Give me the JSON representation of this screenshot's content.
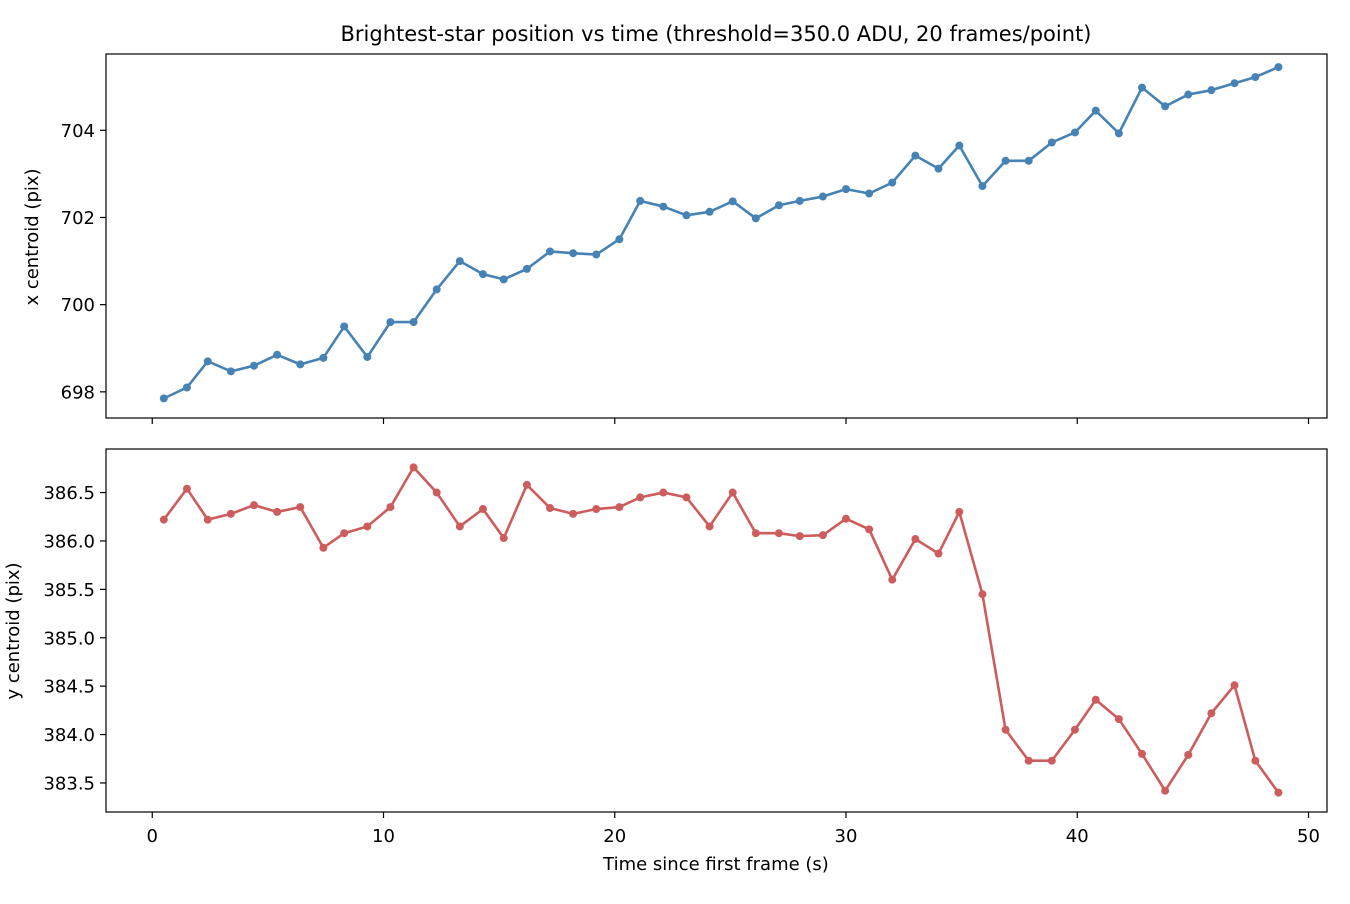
{
  "title": "Brightest-star position vs time  (threshold=350.0 ADU, 20 frames/point)",
  "xlabel": "Time since first frame (s)",
  "colors": {
    "x_series": "#4682b4",
    "y_series": "#cd5c5c"
  },
  "chart_data": [
    {
      "type": "line",
      "panel": "top",
      "ylabel": "x centroid (pix)",
      "xlim": [
        -2.0,
        50.8
      ],
      "ylim": [
        697.4,
        705.75
      ],
      "xticks": [
        0,
        10,
        20,
        30,
        40,
        50
      ],
      "yticks": [
        698,
        700,
        702,
        704
      ],
      "yticklabels": [
        "698",
        "700",
        "702",
        "704"
      ],
      "xticklabels_shown": false,
      "color": "#4682b4",
      "x": [
        0.5,
        1.5,
        2.4,
        3.4,
        4.4,
        5.4,
        6.4,
        7.4,
        8.3,
        9.3,
        10.3,
        11.3,
        12.3,
        13.3,
        14.3,
        15.2,
        16.2,
        17.2,
        18.2,
        19.2,
        20.2,
        21.1,
        22.1,
        23.1,
        24.1,
        25.1,
        26.1,
        27.1,
        28.0,
        29.0,
        30.0,
        31.0,
        32.0,
        33.0,
        34.0,
        34.9,
        35.9,
        36.9,
        37.9,
        38.9,
        39.9,
        40.8,
        41.8,
        42.8,
        43.8,
        44.8,
        45.8,
        46.8,
        47.7,
        48.7
      ],
      "y": [
        697.85,
        698.1,
        698.7,
        698.47,
        698.6,
        698.85,
        698.63,
        698.78,
        699.5,
        698.8,
        699.6,
        699.6,
        700.35,
        701.0,
        700.7,
        700.58,
        700.82,
        701.22,
        701.18,
        701.15,
        701.5,
        702.38,
        702.25,
        702.05,
        702.13,
        702.37,
        701.98,
        702.28,
        702.38,
        702.48,
        702.65,
        702.55,
        702.8,
        703.42,
        703.12,
        703.65,
        702.72,
        703.3,
        703.3,
        703.72,
        703.95,
        704.45,
        703.93,
        704.98,
        704.55,
        704.82,
        704.92,
        705.08,
        705.22,
        705.45
      ]
    },
    {
      "type": "line",
      "panel": "bottom",
      "ylabel": "y centroid (pix)",
      "xlim": [
        -2.0,
        50.8
      ],
      "ylim": [
        383.2,
        386.95
      ],
      "xticks": [
        0,
        10,
        20,
        30,
        40,
        50
      ],
      "xticklabels": [
        "0",
        "10",
        "20",
        "30",
        "40",
        "50"
      ],
      "yticks": [
        383.5,
        384.0,
        384.5,
        385.0,
        385.5,
        386.0,
        386.5
      ],
      "yticklabels": [
        "383.5",
        "384.0",
        "384.5",
        "385.0",
        "385.5",
        "386.0",
        "386.5"
      ],
      "color": "#cd5c5c",
      "x": [
        0.5,
        1.5,
        2.4,
        3.4,
        4.4,
        5.4,
        6.4,
        7.4,
        8.3,
        9.3,
        10.3,
        11.3,
        12.3,
        13.3,
        14.3,
        15.2,
        16.2,
        17.2,
        18.2,
        19.2,
        20.2,
        21.1,
        22.1,
        23.1,
        24.1,
        25.1,
        26.1,
        27.1,
        28.0,
        29.0,
        30.0,
        31.0,
        32.0,
        33.0,
        34.0,
        34.9,
        35.9,
        36.9,
        37.9,
        38.9,
        39.9,
        40.8,
        41.8,
        42.8,
        43.8,
        44.8,
        45.8,
        46.8,
        47.7,
        48.7
      ],
      "y": [
        386.22,
        386.54,
        386.22,
        386.28,
        386.37,
        386.3,
        386.35,
        385.93,
        386.08,
        386.15,
        386.35,
        386.76,
        386.5,
        386.15,
        386.33,
        386.03,
        386.58,
        386.34,
        386.28,
        386.33,
        386.35,
        386.45,
        386.5,
        386.45,
        386.15,
        386.5,
        386.08,
        386.08,
        386.05,
        386.06,
        386.23,
        386.12,
        385.6,
        386.02,
        385.87,
        386.3,
        385.45,
        384.05,
        383.73,
        383.73,
        384.05,
        384.36,
        384.16,
        383.8,
        383.42,
        383.79,
        384.22,
        384.51,
        383.73,
        383.4
      ]
    }
  ]
}
